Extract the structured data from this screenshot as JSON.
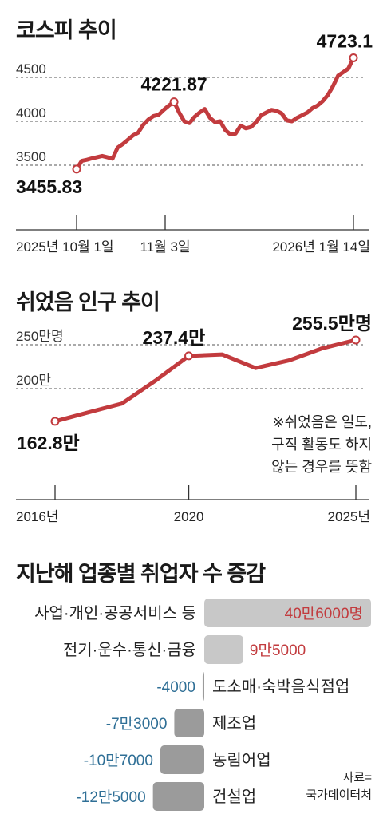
{
  "charts": {
    "kospi": {
      "title": "코스피 추이"
    },
    "inactive": {
      "title": "쉬었음 인구 추이",
      "note": [
        "※쉬었음은 일도,",
        "구직 활동도 하지",
        "않는 경우를 뜻함"
      ]
    },
    "jobs": {
      "title": "지난해 업종별 취업자 수 증감"
    }
  },
  "source": {
    "line1": "자료=",
    "line2": "국가데이터처"
  },
  "colors": {
    "line": "#c23b3e",
    "pos_bar": "#c8c8c8",
    "neg_bar": "#9b9b9b",
    "pos_text": "#c23b3e",
    "neg_text": "#2f6f96",
    "axis": "#333333",
    "grid": "#555555"
  },
  "chart_data": [
    {
      "type": "line",
      "title": "코스피 추이",
      "x_tick_labels": [
        "2025년 10월 1일",
        "11월 3일",
        "2026년 1월 14일"
      ],
      "y_ticks": [
        3500,
        4000,
        4500
      ],
      "ylim": [
        3350,
        4800
      ],
      "series": [
        {
          "values": [
            3455.83,
            3549,
            3562,
            3578,
            3592,
            3605,
            3590,
            3575,
            3700,
            3740,
            3790,
            3840,
            3870,
            3960,
            4020,
            4060,
            4075,
            4130,
            4180,
            4221.87,
            4100,
            4000,
            3980,
            4050,
            4100,
            4140,
            4040,
            3990,
            4000,
            3900,
            3850,
            3860,
            3950,
            3920,
            3935,
            3990,
            4070,
            4100,
            4130,
            4120,
            4090,
            4010,
            4000,
            4040,
            4070,
            4100,
            4150,
            4180,
            4230,
            4300,
            4400,
            4520,
            4560,
            4600,
            4723.1
          ]
        }
      ],
      "annotations": [
        {
          "label": "3455.83",
          "value": 3455.83
        },
        {
          "label": "4221.87",
          "value": 4221.87
        },
        {
          "label": "4723.1",
          "value": 4723.1
        }
      ],
      "grid": true
    },
    {
      "type": "line",
      "title": "쉬었음 인구 추이",
      "x": [
        2016,
        2017,
        2018,
        2019,
        2020,
        2021,
        2022,
        2023,
        2024,
        2025
      ],
      "x_tick_labels": [
        "2016년",
        "2020",
        "2025년"
      ],
      "y_tick_labels": [
        "250만명",
        "200만"
      ],
      "y_ticks": [
        250,
        200
      ],
      "ylim": [
        150,
        260
      ],
      "series": [
        {
          "values": [
            162.8,
            173.0,
            183.0,
            209.0,
            237.4,
            239.0,
            223.5,
            232.2,
            246.0,
            255.5
          ]
        }
      ],
      "annotations": [
        {
          "label": "162.8만",
          "value": 162.8
        },
        {
          "label": "237.4만",
          "value": 237.4
        },
        {
          "label": "255.5만명",
          "value": 255.5
        }
      ],
      "grid": true
    },
    {
      "type": "bar",
      "orientation": "horizontal",
      "title": "지난해 업종별 취업자 수 증감",
      "categories": [
        "사업·개인·공공서비스 등",
        "전기·운수·통신·금융",
        "도소매·숙박음식점업",
        "제조업",
        "농림어업",
        "건설업"
      ],
      "values": [
        406000,
        95000,
        -4000,
        -73000,
        -107000,
        -125000
      ],
      "value_labels": [
        "40만6000명",
        "9만5000",
        "-4000",
        "-7만3000",
        "-10만7000",
        "-12만5000"
      ]
    }
  ]
}
